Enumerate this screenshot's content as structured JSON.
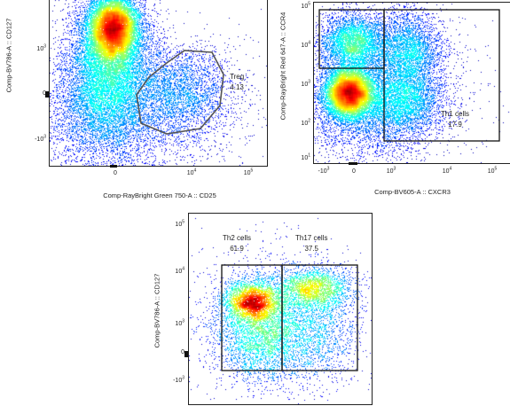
{
  "chart_data": [
    {
      "type": "scatter",
      "title": "",
      "xlabel": "Comp-RayBright Green 750-A :: CD25",
      "ylabel": "Comp-BV786-A :: CD127",
      "xticks": [
        "0",
        "10",
        "10"
      ],
      "xtick_exp": [
        "",
        "4",
        "5"
      ],
      "yticks": [
        "10",
        "0",
        "-10"
      ],
      "ytick_exp": [
        "3",
        "",
        "3"
      ],
      "gates": [
        {
          "name": "Treg",
          "value": "4.13",
          "shape": "polygon"
        }
      ],
      "population": "dense CD127-high cluster near CD25 = 0; sparse CD25+ CD127-low cluster",
      "colormap": "pseudocolor density (blue-cyan-green-yellow-red)"
    },
    {
      "type": "scatter",
      "title": "",
      "xlabel": "Comp-BV605-A :: CXCR3",
      "ylabel": "Comp-RayBright Red 647-A :: CCR4",
      "xticks": [
        "-10",
        "0",
        "10",
        "10",
        "10"
      ],
      "xtick_exp": [
        "3",
        "",
        "3",
        "4",
        "5"
      ],
      "yticks": [
        "10",
        "10",
        "10",
        "10",
        "10"
      ],
      "ytick_exp": [
        "5",
        "4",
        "3",
        "2",
        "1"
      ],
      "gates": [
        {
          "name": "Th1 cells",
          "value": "17.9",
          "shape": "rectangle"
        }
      ],
      "colormap": "pseudocolor density (blue-cyan-green-yellow-red)"
    },
    {
      "type": "scatter",
      "title": "",
      "xlabel": "",
      "ylabel": "Comp-BV786-A :: CD127",
      "yticks": [
        "10",
        "10",
        "10",
        "0",
        "-10"
      ],
      "ytick_exp": [
        "5",
        "4",
        "3",
        "",
        "3"
      ],
      "gates": [
        {
          "name": "Th2 cells",
          "value": "61.9",
          "shape": "rectangle"
        },
        {
          "name": "Th17 cells",
          "value": "37.5",
          "shape": "rectangle"
        }
      ],
      "colormap": "pseudocolor density (blue-cyan-green-yellow-red)"
    }
  ]
}
